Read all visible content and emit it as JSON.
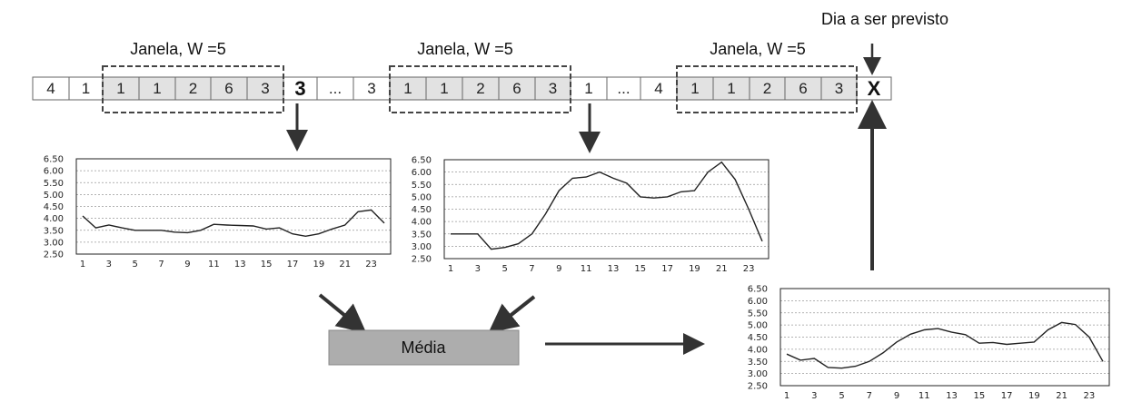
{
  "window_label": "Janela, W =5",
  "target_label": "Dia a ser previsto",
  "media_label": "Média",
  "sequence": [
    {
      "t": "4"
    },
    {
      "t": "1"
    },
    {
      "t": "1"
    },
    {
      "t": "1"
    },
    {
      "t": "2"
    },
    {
      "t": "6"
    },
    {
      "t": "3"
    },
    {
      "t": "3",
      "big": true
    },
    {
      "t": "..."
    },
    {
      "t": "3"
    },
    {
      "t": "1"
    },
    {
      "t": "1"
    },
    {
      "t": "2"
    },
    {
      "t": "6"
    },
    {
      "t": "3"
    },
    {
      "t": "1"
    },
    {
      "t": "..."
    },
    {
      "t": "4"
    },
    {
      "t": "1"
    },
    {
      "t": "1"
    },
    {
      "t": "2"
    },
    {
      "t": "6"
    },
    {
      "t": "3"
    },
    {
      "t": "X",
      "big": true
    }
  ],
  "chart_data": [
    {
      "type": "line",
      "x": [
        1,
        2,
        3,
        4,
        5,
        6,
        7,
        8,
        9,
        10,
        11,
        12,
        13,
        14,
        15,
        16,
        17,
        18,
        19,
        20,
        21,
        22,
        23,
        24
      ],
      "values": [
        4.1,
        3.6,
        3.72,
        3.6,
        3.5,
        3.5,
        3.5,
        3.42,
        3.4,
        3.5,
        3.75,
        3.72,
        3.7,
        3.68,
        3.55,
        3.6,
        3.35,
        3.25,
        3.35,
        3.55,
        3.72,
        4.28,
        4.35,
        3.8
      ],
      "xticks": [
        "1",
        "3",
        "5",
        "7",
        "9",
        "11",
        "13",
        "15",
        "17",
        "19",
        "21",
        "23"
      ],
      "yticks": [
        "6.50",
        "6.00",
        "5.50",
        "5.00",
        "4.50",
        "4.00",
        "3.50",
        "3.00",
        "2.50"
      ],
      "ylim": [
        2.5,
        6.5
      ],
      "grid": true
    },
    {
      "type": "line",
      "x": [
        1,
        2,
        3,
        4,
        5,
        6,
        7,
        8,
        9,
        10,
        11,
        12,
        13,
        14,
        15,
        16,
        17,
        18,
        19,
        20,
        21,
        22,
        23,
        24
      ],
      "values": [
        3.5,
        3.5,
        3.5,
        2.88,
        2.95,
        3.1,
        3.5,
        4.3,
        5.25,
        5.75,
        5.8,
        6.0,
        5.75,
        5.55,
        5.0,
        4.95,
        5.0,
        5.2,
        5.25,
        6.0,
        6.4,
        5.7,
        4.5,
        3.2
      ],
      "xticks": [
        "1",
        "3",
        "5",
        "7",
        "9",
        "11",
        "13",
        "15",
        "17",
        "19",
        "21",
        "23"
      ],
      "yticks": [
        "6.50",
        "6.00",
        "5.50",
        "5.00",
        "4.50",
        "4.00",
        "3.50",
        "3.00",
        "2.50"
      ],
      "ylim": [
        2.5,
        6.5
      ],
      "grid": true
    },
    {
      "type": "line",
      "x": [
        1,
        2,
        3,
        4,
        5,
        6,
        7,
        8,
        9,
        10,
        11,
        12,
        13,
        14,
        15,
        16,
        17,
        18,
        19,
        20,
        21,
        22,
        23,
        24
      ],
      "values": [
        3.8,
        3.55,
        3.62,
        3.25,
        3.22,
        3.3,
        3.5,
        3.85,
        4.3,
        4.62,
        4.8,
        4.85,
        4.7,
        4.6,
        4.25,
        4.28,
        4.2,
        4.25,
        4.3,
        4.8,
        5.1,
        5.02,
        4.5,
        3.5
      ],
      "xticks": [
        "1",
        "3",
        "5",
        "7",
        "9",
        "11",
        "13",
        "15",
        "17",
        "19",
        "21",
        "23"
      ],
      "yticks": [
        "6.50",
        "6.00",
        "5.50",
        "5.00",
        "4.50",
        "4.00",
        "3.50",
        "3.00",
        "2.50"
      ],
      "ylim": [
        2.5,
        6.5
      ],
      "grid": true
    }
  ]
}
